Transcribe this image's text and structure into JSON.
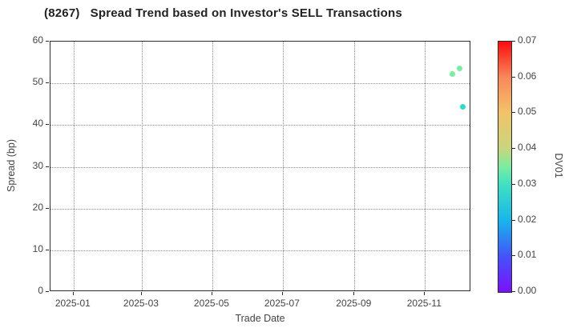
{
  "chart_data": {
    "type": "scatter",
    "title": "(8267)   Spread Trend based on Investor's SELL Transactions",
    "xlabel": "Trade Date",
    "ylabel": "Spread (bp)",
    "x_range": [
      "2024-12-12",
      "2025-12-11"
    ],
    "ylim": [
      0,
      60
    ],
    "grid": "dotted",
    "x_ticks": [
      {
        "label": "2025-01",
        "date": "2025-01-01"
      },
      {
        "label": "2025-03",
        "date": "2025-03-01"
      },
      {
        "label": "2025-05",
        "date": "2025-05-01"
      },
      {
        "label": "2025-07",
        "date": "2025-07-01"
      },
      {
        "label": "2025-09",
        "date": "2025-09-01"
      },
      {
        "label": "2025-11",
        "date": "2025-11-01"
      }
    ],
    "y_ticks": [
      {
        "label": "0",
        "value": 0
      },
      {
        "label": "10",
        "value": 10
      },
      {
        "label": "20",
        "value": 20
      },
      {
        "label": "30",
        "value": 30
      },
      {
        "label": "40",
        "value": 40
      },
      {
        "label": "50",
        "value": 50
      },
      {
        "label": "60",
        "value": 60
      }
    ],
    "colorbar": {
      "label": "DV01",
      "range": [
        0,
        0.07
      ],
      "ticks": [
        {
          "label": "0.00",
          "value": 0.0
        },
        {
          "label": "0.01",
          "value": 0.01
        },
        {
          "label": "0.02",
          "value": 0.02
        },
        {
          "label": "0.03",
          "value": 0.03
        },
        {
          "label": "0.04",
          "value": 0.04
        },
        {
          "label": "0.05",
          "value": 0.05
        },
        {
          "label": "0.06",
          "value": 0.06
        },
        {
          "label": "0.07",
          "value": 0.07
        }
      ],
      "gradient_stops": [
        {
          "value": 0.0,
          "color": "#7c10fd"
        },
        {
          "value": 0.01,
          "color": "#4353fa"
        },
        {
          "value": 0.02,
          "color": "#18b5eb"
        },
        {
          "value": 0.03,
          "color": "#3fe0c3"
        },
        {
          "value": 0.035,
          "color": "#79eda0"
        },
        {
          "value": 0.04,
          "color": "#c8d67d"
        },
        {
          "value": 0.05,
          "color": "#f2c36b"
        },
        {
          "value": 0.06,
          "color": "#f9885a"
        },
        {
          "value": 0.07,
          "color": "#fb0d0d"
        }
      ]
    },
    "points": [
      {
        "date": "2025-11-25",
        "spread": 52.2,
        "dv01": 0.035,
        "color": "#79eda1"
      },
      {
        "date": "2025-12-01",
        "spread": 53.5,
        "dv01": 0.035,
        "color": "#79eda1"
      },
      {
        "date": "2025-12-04",
        "spread": 44.4,
        "dv01": 0.026,
        "color": "#2ed9cd"
      }
    ]
  }
}
